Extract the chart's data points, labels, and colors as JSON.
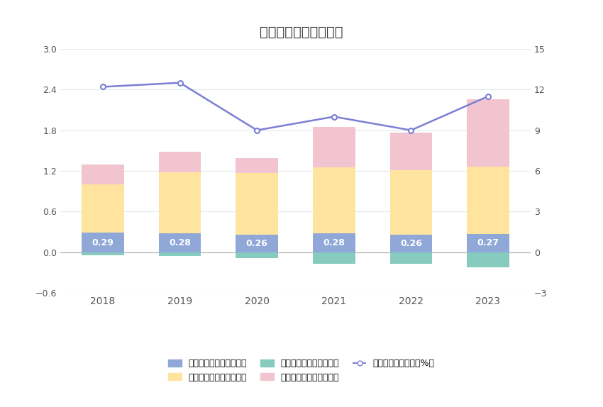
{
  "years": [
    "2018",
    "2019",
    "2020",
    "2021",
    "2022",
    "2023"
  ],
  "sales_expenses": [
    0.29,
    0.28,
    0.26,
    0.28,
    0.26,
    0.27
  ],
  "mgmt_expenses": [
    0.71,
    0.9,
    0.91,
    0.97,
    0.95,
    0.99
  ],
  "finance_expenses": [
    -0.04,
    -0.05,
    -0.08,
    -0.17,
    -0.17,
    -0.22
  ],
  "rd_expenses": [
    0.3,
    0.3,
    0.22,
    0.6,
    0.56,
    1.0
  ],
  "expense_ratio": [
    12.2,
    12.5,
    9.0,
    10.0,
    9.0,
    11.5
  ],
  "bar_width": 0.55,
  "sales_color": "#8FA8D8",
  "mgmt_color": "#FFE4A0",
  "finance_color": "#86CBBE",
  "rd_color": "#F2C4D0",
  "line_color": "#7B7FD4",
  "title": "历年期间费用变化情况",
  "title_fontsize": 14,
  "left_ylim": [
    -0.6,
    3.0
  ],
  "right_ylim": [
    -3.0,
    15.0
  ],
  "left_yticks": [
    -0.6,
    0,
    0.6,
    1.2,
    1.8,
    2.4,
    3.0
  ],
  "right_yticks": [
    -3,
    0,
    3,
    6,
    9,
    12,
    15
  ],
  "legend_labels": [
    "左轴：销售费用（亿元）",
    "左轴：管理费用（亿元）",
    "左轴：财务费用（亿元）",
    "左轴：研发费用（亿元）",
    "右轴：期间费用率（%）"
  ],
  "background_color": "#FFFFFF",
  "grid_color": "#E0E8F0"
}
